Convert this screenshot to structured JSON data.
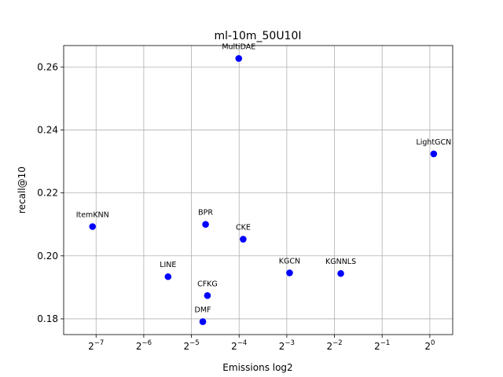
{
  "chart_data": {
    "type": "scatter",
    "title": "ml-10m_50U10I",
    "xlabel": "Emissions log2",
    "ylabel": "recall@10",
    "x_scale": "log2",
    "xlim_exponent": [
      -7.68,
      0.48
    ],
    "ylim": [
      0.175,
      0.2668
    ],
    "x_ticks": [
      {
        "base": "2",
        "exp": "−7",
        "power": -7
      },
      {
        "base": "2",
        "exp": "−6",
        "power": -6
      },
      {
        "base": "2",
        "exp": "−5",
        "power": -5
      },
      {
        "base": "2",
        "exp": "−4",
        "power": -4
      },
      {
        "base": "2",
        "exp": "−3",
        "power": -3
      },
      {
        "base": "2",
        "exp": "−2",
        "power": -2
      },
      {
        "base": "2",
        "exp": "−1",
        "power": -1
      },
      {
        "base": "2",
        "exp": "0",
        "power": 0
      }
    ],
    "y_ticks": [
      {
        "value": 0.18,
        "label": "0.18"
      },
      {
        "value": 0.2,
        "label": "0.20"
      },
      {
        "value": 0.22,
        "label": "0.22"
      },
      {
        "value": 0.24,
        "label": "0.24"
      },
      {
        "value": 0.26,
        "label": "0.26"
      }
    ],
    "grid": true,
    "marker_color": "#0000ff",
    "points": [
      {
        "name": "ItemKNN",
        "x": 0.00742,
        "y": 0.2093
      },
      {
        "name": "LINE",
        "x": 0.02224,
        "y": 0.1934
      },
      {
        "name": "BPR",
        "x": 0.03839,
        "y": 0.21
      },
      {
        "name": "CFKG",
        "x": 0.03944,
        "y": 0.1874
      },
      {
        "name": "DMF",
        "x": 0.03687,
        "y": 0.1791
      },
      {
        "name": "MultiDAE",
        "x": 0.06218,
        "y": 0.2627
      },
      {
        "name": "CKE",
        "x": 0.0663,
        "y": 0.2053
      },
      {
        "name": "KGCN",
        "x": 0.13018,
        "y": 0.1946
      },
      {
        "name": "KGNNLS",
        "x": 0.27399,
        "y": 0.1944
      },
      {
        "name": "LightGCN",
        "x": 1.0585,
        "y": 0.2324
      }
    ]
  }
}
